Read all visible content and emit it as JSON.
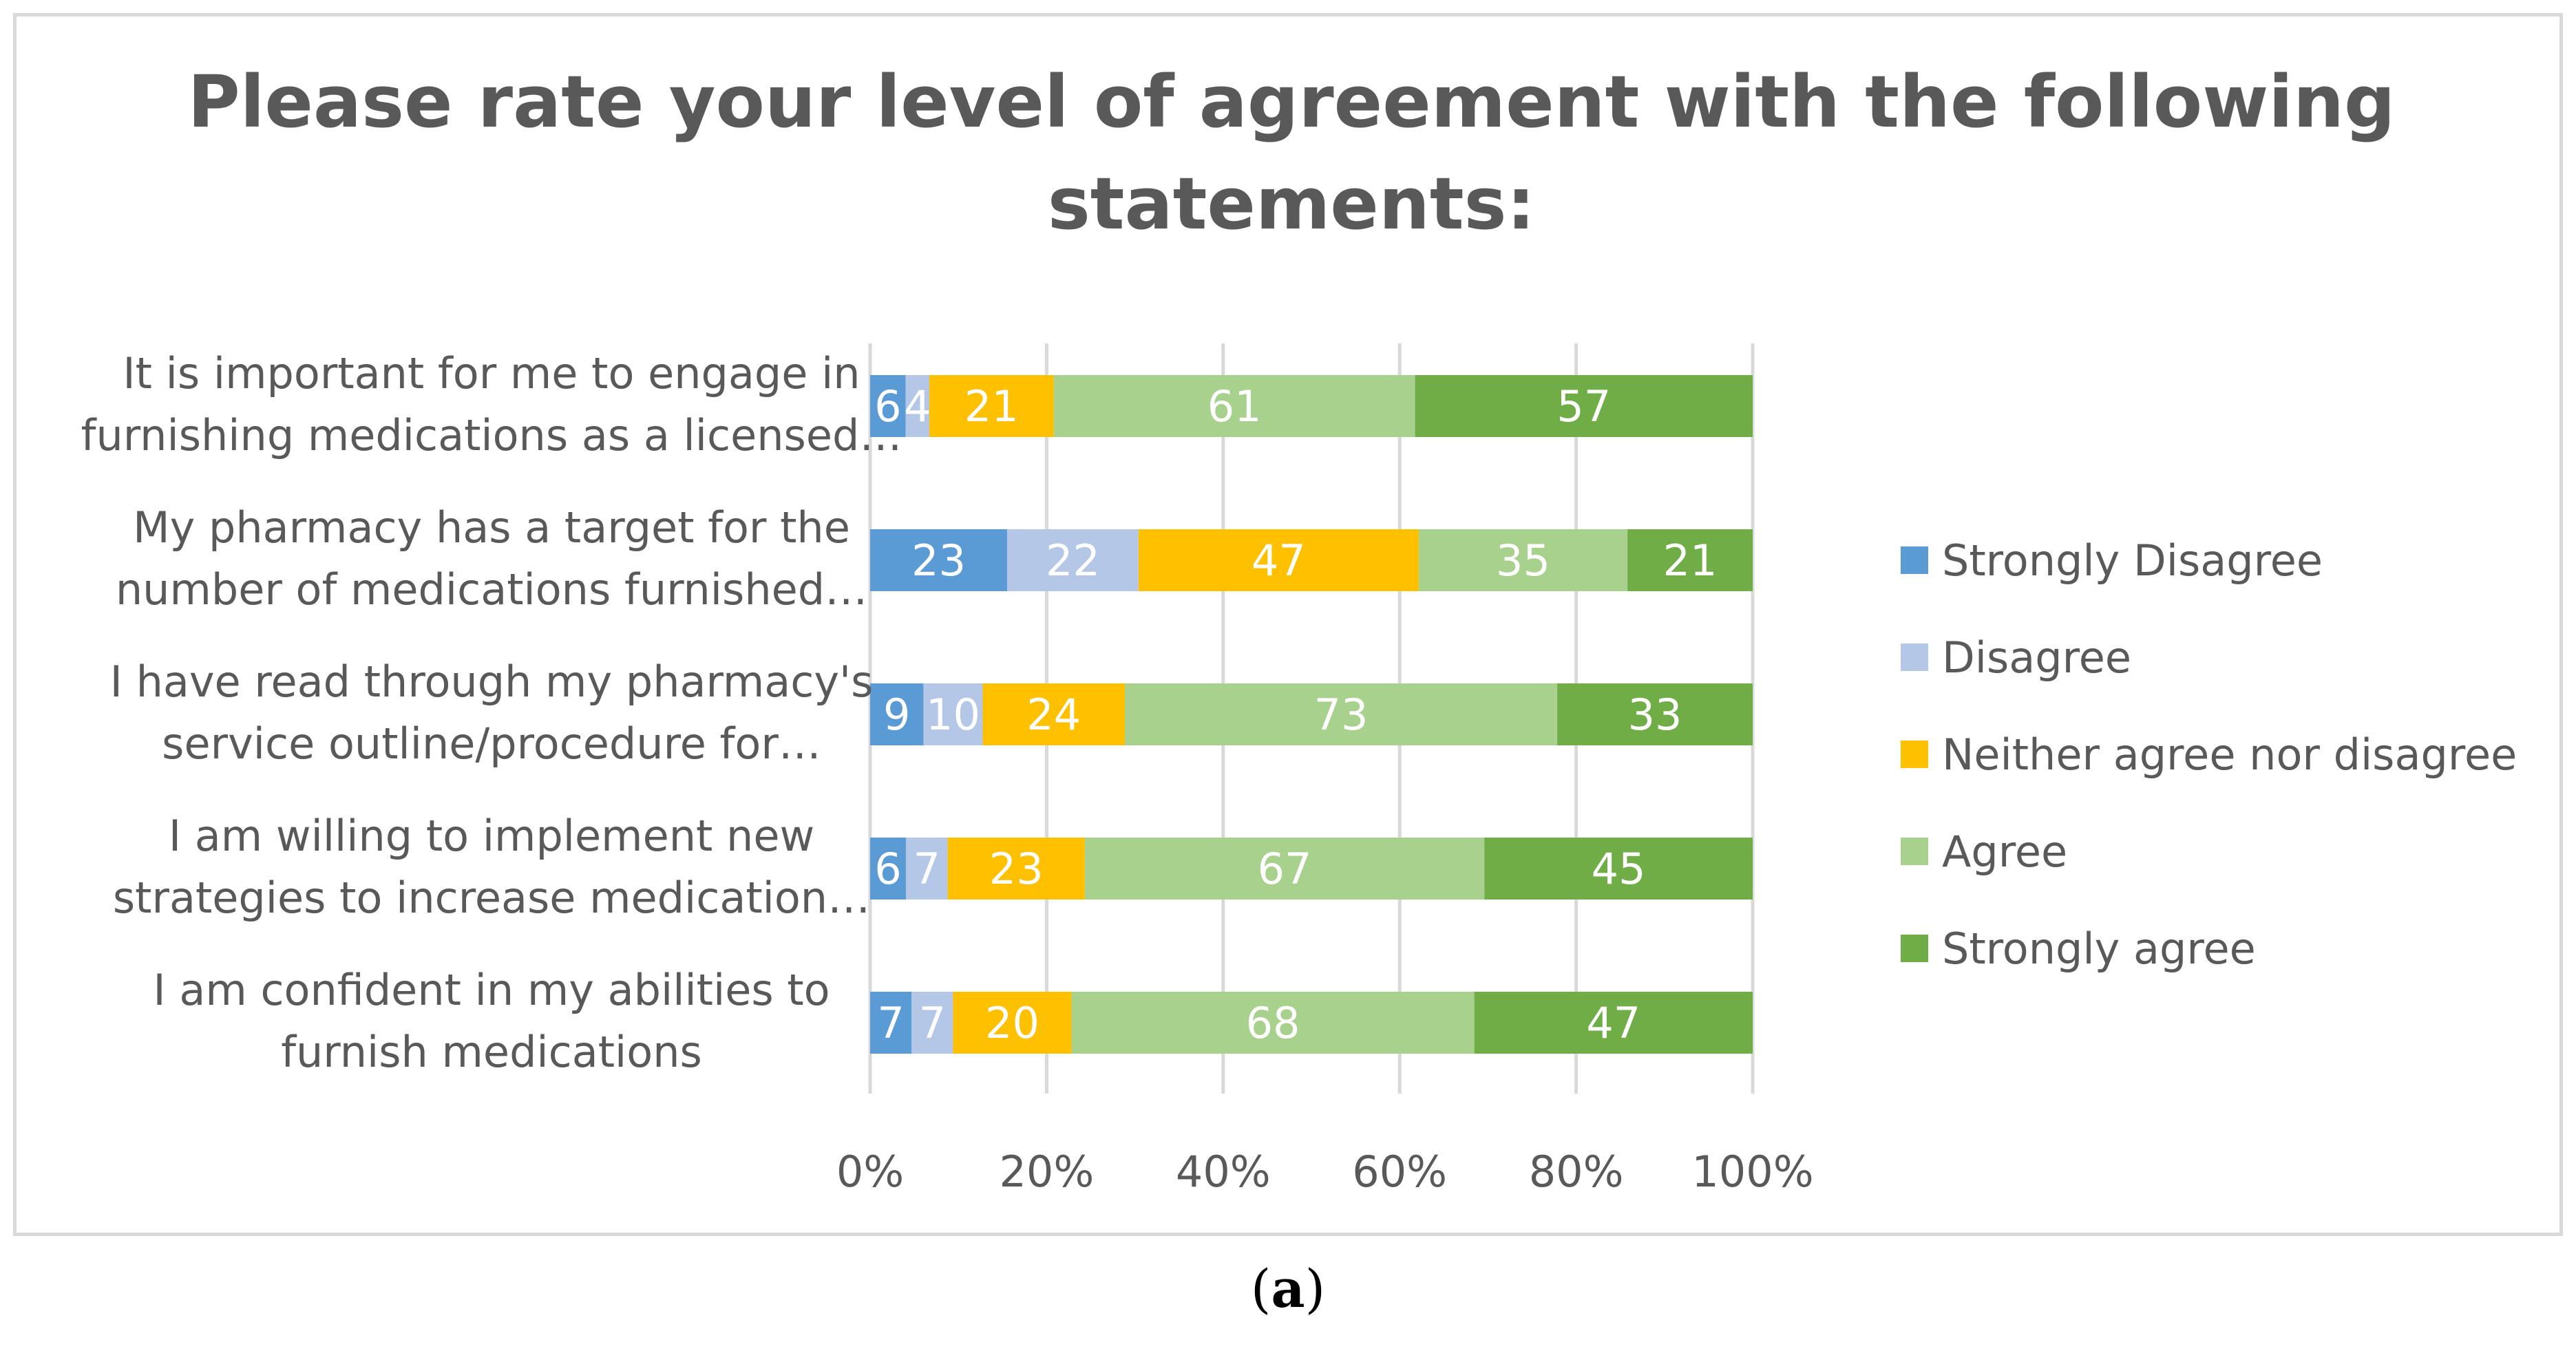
{
  "chart_data": {
    "type": "bar",
    "orientation": "horizontal",
    "stacked": "percent",
    "title": "Please rate your level of agreement with the following statements:",
    "title_lines": [
      "Please rate your level of agreement with the following",
      "statements:"
    ],
    "categories": [
      "It is important for me to engage in furnishing  medications as a licensed…",
      "My pharmacy has a target for the number of medications furnished…",
      "I have read through my pharmacy's service outline/procedure for…",
      "I am willing to implement new strategies to increase medication…",
      "I am confident in my abilities to furnish medications"
    ],
    "category_lines": [
      [
        "It is important for me to engage in",
        "furnishing  medications as a licensed…"
      ],
      [
        "My pharmacy has a target for the",
        "number of medications furnished…"
      ],
      [
        "I have read through my pharmacy's",
        "service outline/procedure for…"
      ],
      [
        "I am willing to implement new",
        "strategies to increase medication…"
      ],
      [
        "I am confident in my abilities to",
        "furnish medications"
      ]
    ],
    "series": [
      {
        "name": "Strongly Disagree",
        "color": "#5b9bd5",
        "values": [
          6,
          23,
          9,
          6,
          7
        ]
      },
      {
        "name": "Disagree",
        "color": "#b4c7e7",
        "values": [
          4,
          22,
          10,
          7,
          7
        ]
      },
      {
        "name": "Neither agree nor disagree",
        "color": "#ffc000",
        "values": [
          21,
          47,
          24,
          23,
          20
        ]
      },
      {
        "name": "Agree",
        "color": "#a9d18e",
        "values": [
          61,
          35,
          73,
          67,
          68
        ]
      },
      {
        "name": "Strongly agree",
        "color": "#70ad47",
        "values": [
          57,
          21,
          33,
          45,
          47
        ]
      }
    ],
    "xlim": [
      0,
      100
    ],
    "xticks": [
      "0%",
      "20%",
      "40%",
      "60%",
      "80%",
      "100%"
    ],
    "grid": true,
    "legend": "right",
    "xlabel": "",
    "ylabel": ""
  },
  "caption": {
    "open": "(",
    "letter": "a",
    "close": ")"
  }
}
